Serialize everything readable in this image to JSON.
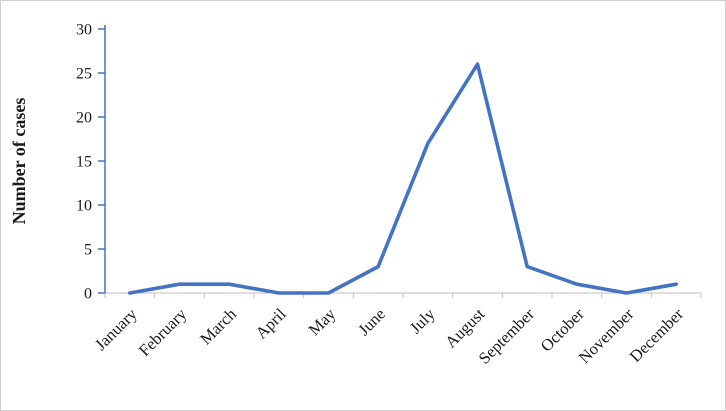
{
  "figure": {
    "border_color": "#cfcfcf",
    "background": "#ffffff"
  },
  "chart_data": {
    "type": "line",
    "categories": [
      "January",
      "February",
      "March",
      "April",
      "May",
      "June",
      "July",
      "August",
      "September",
      "October",
      "November",
      "December"
    ],
    "values": [
      0,
      1,
      1,
      0,
      0,
      3,
      17,
      26,
      3,
      1,
      0,
      1
    ],
    "series": [
      {
        "name": "Number of cases",
        "values": [
          0,
          1,
          1,
          0,
          0,
          3,
          17,
          26,
          3,
          1,
          0,
          1
        ]
      }
    ],
    "title": "",
    "xlabel": "",
    "ylabel": "Number of cases",
    "ylim": [
      0,
      30
    ],
    "yticks": [
      0,
      5,
      10,
      15,
      20,
      25,
      30
    ],
    "grid": false,
    "legend": false,
    "line_color": "#4472C4",
    "y_axis_color": "#4472C4",
    "x_axis_color": "#bfbfbf",
    "text_color": "#1a1a1a"
  }
}
